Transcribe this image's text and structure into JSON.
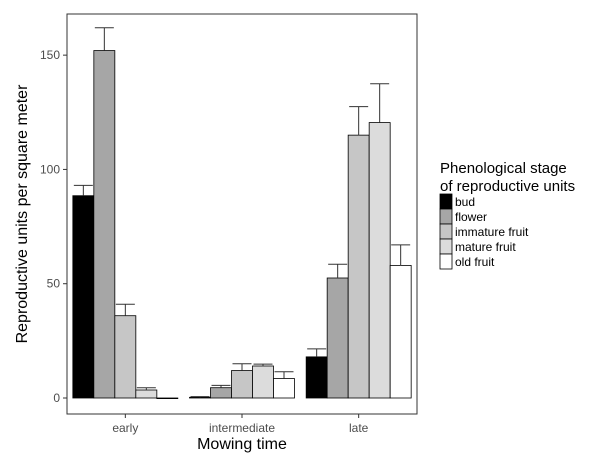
{
  "chart_data": {
    "type": "bar",
    "title": "",
    "xlabel": "Mowing time",
    "ylabel": "Reproductive units per square meter",
    "categories": [
      "early",
      "intermediate",
      "late"
    ],
    "ylim": [
      -7,
      168
    ],
    "yticks": [
      0,
      50,
      100,
      150
    ],
    "grid": false,
    "legend": {
      "title_lines": [
        "Phenological stage",
        "of reproductive units"
      ],
      "placement": "right"
    },
    "series": [
      {
        "name": "bud",
        "color": "#000000",
        "values": [
          88.5,
          0.3,
          18
        ],
        "error": [
          4.5,
          0.3,
          3.5
        ]
      },
      {
        "name": "flower",
        "color": "#a6a6a6",
        "values": [
          152,
          4.5,
          52.5
        ],
        "error": [
          10,
          1.0,
          6
        ]
      },
      {
        "name": "immature fruit",
        "color": "#c6c6c6",
        "values": [
          36,
          12,
          115
        ],
        "error": [
          5,
          3,
          12.5
        ]
      },
      {
        "name": "mature fruit",
        "color": "#dcdcdc",
        "values": [
          3.5,
          14,
          120.5
        ],
        "error": [
          1.0,
          0.8,
          17
        ]
      },
      {
        "name": "old fruit",
        "color": "#ffffff",
        "values": [
          0,
          8.5,
          58
        ],
        "error": [
          0,
          3,
          9
        ]
      }
    ]
  }
}
